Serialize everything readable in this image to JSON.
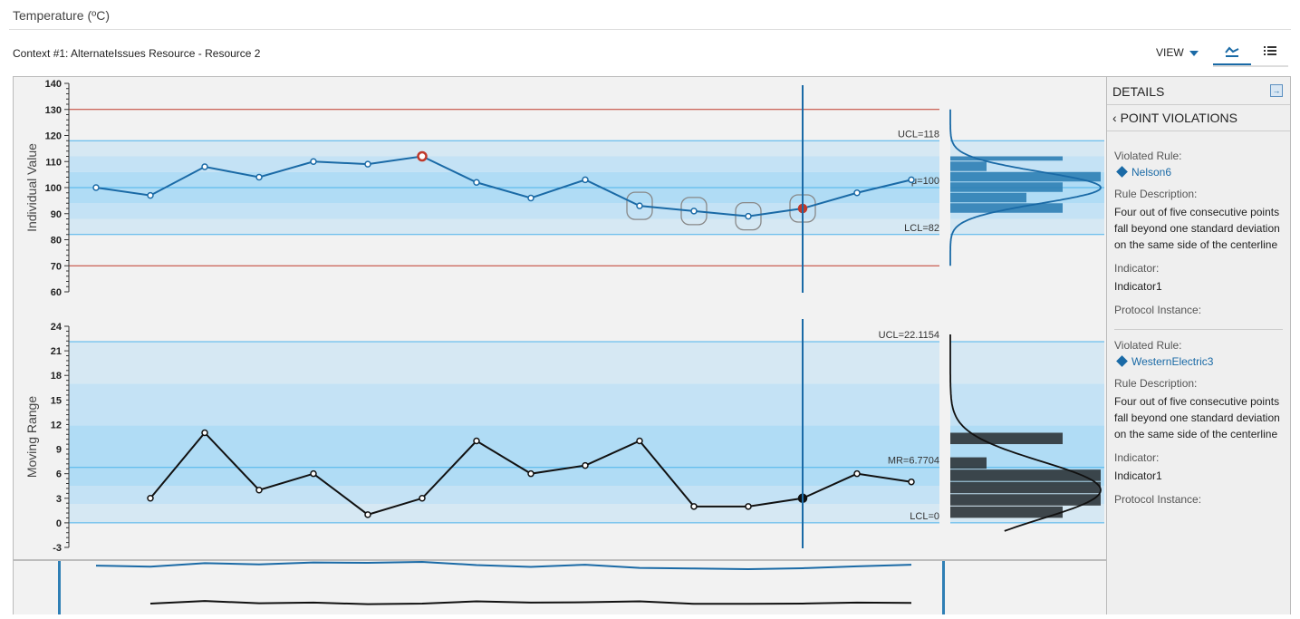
{
  "header": {
    "title": "Temperature (ºC)",
    "context": "Context #1: AlternateIssues Resource - Resource 2",
    "view_label": "VIEW"
  },
  "details": {
    "title": "DETAILS",
    "back_label": "POINT VIOLATIONS",
    "violations": [
      {
        "violated_rule_label": "Violated Rule:",
        "rule": "Nelson6",
        "desc_label": "Rule Description:",
        "description": "Four out of five consecutive points fall beyond one standard deviation on the same side of the centerline",
        "indicator_label": "Indicator:",
        "indicator": "Indicator1",
        "protocol_label": "Protocol Instance:"
      },
      {
        "violated_rule_label": "Violated Rule:",
        "rule": "WesternElectric3",
        "desc_label": "Rule Description:",
        "description": "Four out of five consecutive points fall beyond one standard deviation on the same side of the centerline",
        "indicator_label": "Indicator:",
        "indicator": "Indicator1",
        "protocol_label": "Protocol Instance:"
      }
    ]
  },
  "chart_data": [
    {
      "type": "line",
      "ylabel": "Individual Value",
      "ylim": [
        60,
        140
      ],
      "yticks": [
        60,
        70,
        80,
        90,
        100,
        110,
        120,
        130,
        140
      ],
      "values": [
        100,
        97,
        108,
        104,
        110,
        109,
        112,
        102,
        96,
        103,
        93,
        91,
        89,
        92,
        98,
        103
      ],
      "ucl": 118,
      "center": 100,
      "lcl": 82,
      "spec_limits": [
        130,
        70
      ],
      "labels": {
        "ucl": "UCL=118",
        "center": "μ=100",
        "lcl": "LCL=82"
      },
      "violations": [
        10,
        11,
        12,
        13
      ],
      "selected": 13,
      "flagged": 6,
      "colors": {
        "line": "#1a6aa6",
        "violation": "#c0392b",
        "spec": "#c0392b"
      }
    },
    {
      "type": "line",
      "ylabel": "Moving Range",
      "ylim": [
        -3,
        24
      ],
      "yticks": [
        -3,
        0,
        3,
        6,
        9,
        12,
        15,
        18,
        21,
        24
      ],
      "values": [
        null,
        3,
        11,
        4,
        6,
        1,
        3,
        10,
        6,
        7,
        10,
        2,
        2,
        3,
        6,
        5
      ],
      "ucl": 22.1154,
      "center": 6.7704,
      "lcl": 0,
      "labels": {
        "ucl": "UCL=22.1154",
        "center": "MR=6.7704",
        "lcl": "LCL=0"
      },
      "selected": 13,
      "colors": {
        "line": "#111"
      }
    }
  ]
}
